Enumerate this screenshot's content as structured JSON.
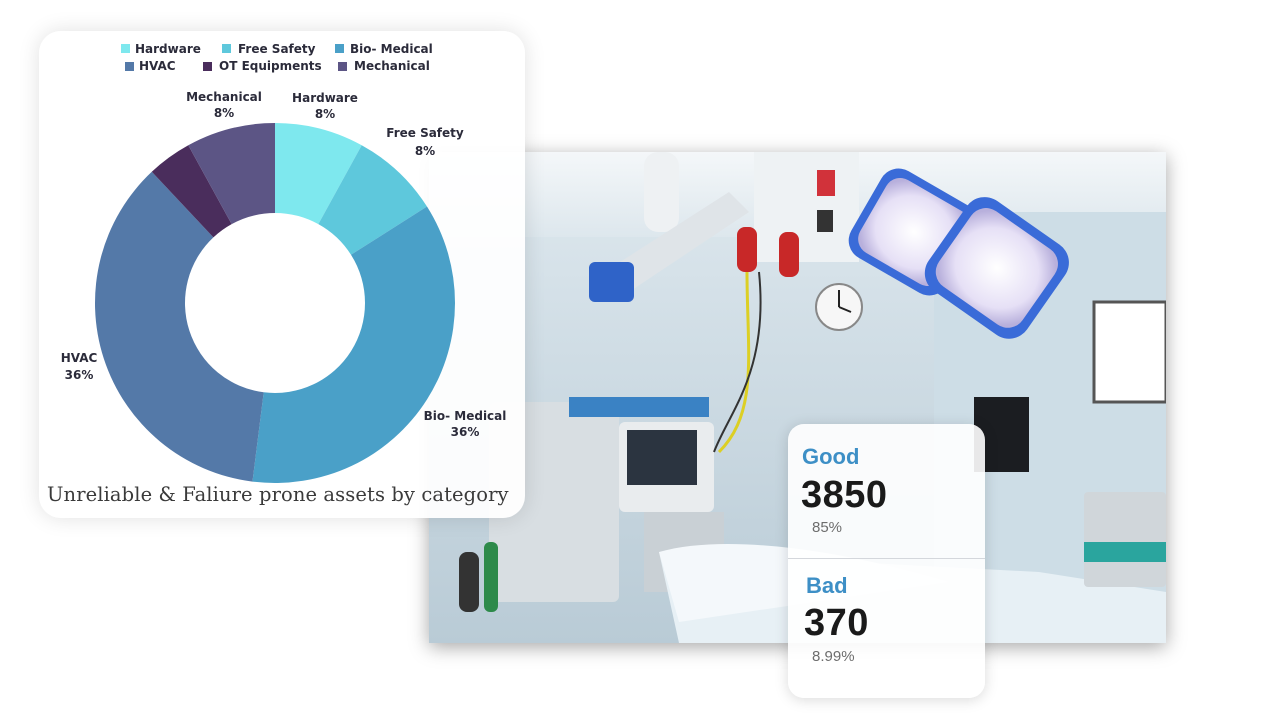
{
  "colors": {
    "hardware": "#7ee8ee",
    "free_safety": "#5ec8dc",
    "bio_medical": "#4aa0c8",
    "hvac": "#5479a8",
    "ot_equipments": "#4a2d5c",
    "mechanical": "#5c5585",
    "good_label": "#3d8fc6"
  },
  "chart_data": {
    "type": "donut",
    "title": "Unreliable & Faliure prone assets by category",
    "legend": {
      "placement": "top",
      "items": [
        "Hardware",
        "Free Safety",
        "Bio- Medical",
        "HVAC",
        "OT Equipments",
        "Mechanical"
      ]
    },
    "categories": [
      "Hardware",
      "Free Safety",
      "Bio- Medical",
      "HVAC",
      "OT Equipments",
      "Mechanical"
    ],
    "values": [
      8,
      8,
      36,
      36,
      4,
      8
    ],
    "value_unit": "%",
    "data_labels": [
      {
        "name": "Hardware",
        "value": "8%"
      },
      {
        "name": "Free Safety",
        "value": "8%"
      },
      {
        "name": "Bio- Medical",
        "value": "36%"
      },
      {
        "name": "HVAC",
        "value": "36%"
      },
      {
        "name": "Mechanical",
        "value": "8%"
      }
    ]
  },
  "stats": {
    "good": {
      "label": "Good",
      "value": "3850",
      "percent": "85%"
    },
    "bad": {
      "label": "Bad",
      "value": "370",
      "percent": "8.99%"
    }
  }
}
